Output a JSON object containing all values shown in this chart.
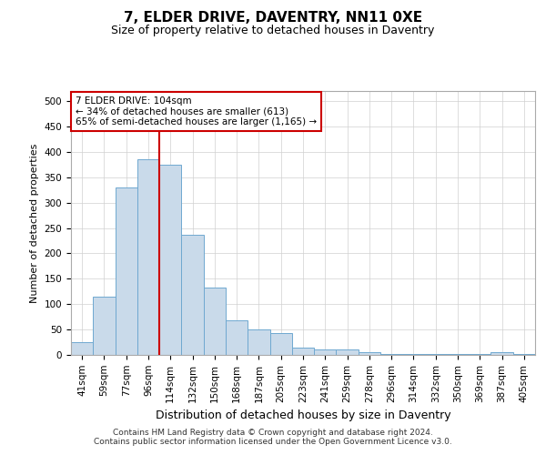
{
  "title": "7, ELDER DRIVE, DAVENTRY, NN11 0XE",
  "subtitle": "Size of property relative to detached houses in Daventry",
  "xlabel": "Distribution of detached houses by size in Daventry",
  "ylabel": "Number of detached properties",
  "categories": [
    "41sqm",
    "59sqm",
    "77sqm",
    "96sqm",
    "114sqm",
    "132sqm",
    "150sqm",
    "168sqm",
    "187sqm",
    "205sqm",
    "223sqm",
    "241sqm",
    "259sqm",
    "278sqm",
    "296sqm",
    "314sqm",
    "332sqm",
    "350sqm",
    "369sqm",
    "387sqm",
    "405sqm"
  ],
  "values": [
    25,
    115,
    330,
    385,
    375,
    237,
    132,
    68,
    50,
    43,
    15,
    10,
    10,
    5,
    2,
    2,
    2,
    2,
    2,
    6,
    2
  ],
  "bar_color": "#c9daea",
  "bar_edge_color": "#6fa8d0",
  "vline_x": 3.5,
  "vline_color": "#cc0000",
  "annotation_line1": "7 ELDER DRIVE: 104sqm",
  "annotation_line2": "← 34% of detached houses are smaller (613)",
  "annotation_line3": "65% of semi-detached houses are larger (1,165) →",
  "annotation_box_color": "#ffffff",
  "annotation_box_edge": "#cc0000",
  "ylim": [
    0,
    520
  ],
  "yticks": [
    0,
    50,
    100,
    150,
    200,
    250,
    300,
    350,
    400,
    450,
    500
  ],
  "footer": "Contains HM Land Registry data © Crown copyright and database right 2024.\nContains public sector information licensed under the Open Government Licence v3.0.",
  "bg_color": "#ffffff",
  "grid_color": "#d0d0d0",
  "title_fontsize": 11,
  "subtitle_fontsize": 9,
  "xlabel_fontsize": 9,
  "ylabel_fontsize": 8,
  "tick_fontsize": 7.5,
  "footer_fontsize": 6.5
}
